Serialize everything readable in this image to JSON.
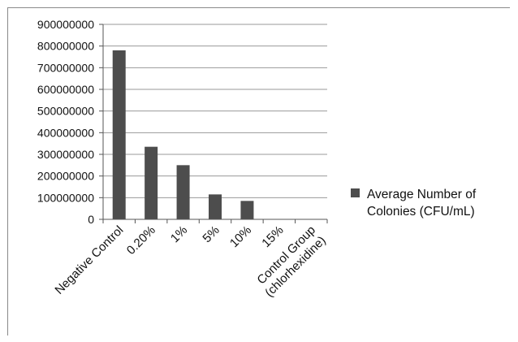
{
  "chart_data": {
    "type": "bar",
    "categories": [
      "Negative Control",
      "0.20%",
      "1%",
      "5%",
      "10%",
      "15%",
      "Control Group (chlorhexidine)"
    ],
    "category_lines": [
      [
        "Negative Control"
      ],
      [
        "0.20%"
      ],
      [
        "1%"
      ],
      [
        "5%"
      ],
      [
        "10%"
      ],
      [
        "15%"
      ],
      [
        "Control Group",
        "(chlorhexidine)"
      ]
    ],
    "series": [
      {
        "name": "Average Number of Colonies (CFU/mL)",
        "values": [
          780000000,
          335000000,
          250000000,
          115000000,
          85000000,
          0,
          0
        ]
      }
    ],
    "legend_lines": [
      "Average Number of",
      "Colonies (CFU/mL)"
    ],
    "yticks": [
      0,
      100000000,
      200000000,
      300000000,
      400000000,
      500000000,
      600000000,
      700000000,
      800000000,
      900000000
    ],
    "ylim": [
      0,
      900000000
    ],
    "grid": true,
    "legend_position": "right",
    "colors": {
      "bar": "#4d4d4d",
      "grid": "#9a9a9a",
      "axis": "#555555"
    }
  }
}
